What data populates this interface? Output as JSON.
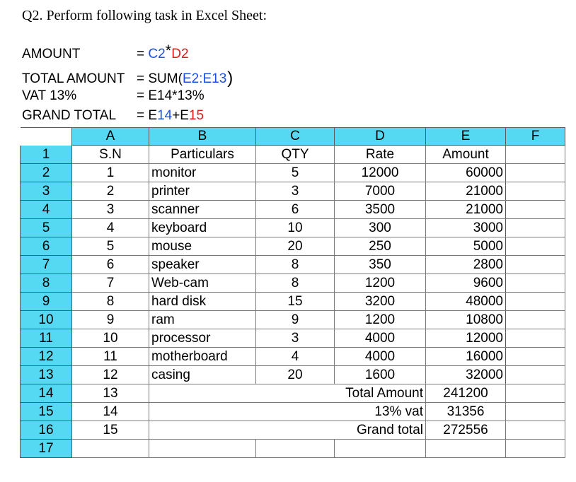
{
  "title": "Q2. Perform following task in Excel Sheet:",
  "formulas": [
    {
      "label": "AMOUNT",
      "parts": [
        {
          "text": "= ",
          "color": "black"
        },
        {
          "text": "C2",
          "color": "blue"
        },
        {
          "text": "*",
          "color": "black",
          "style": "star"
        },
        {
          "text": "D2",
          "color": "red"
        }
      ]
    },
    {
      "label": "TOTAL AMOUNT",
      "parts": [
        {
          "text": "= SUM(",
          "color": "black"
        },
        {
          "text": "E2:E13",
          "color": "blue"
        },
        {
          "text": ")",
          "color": "black",
          "style": "paren"
        }
      ]
    },
    {
      "label": "VAT 13%",
      "parts": [
        {
          "text": "= E14*13%",
          "color": "black"
        }
      ]
    },
    {
      "label": "GRAND TOTAL",
      "parts": [
        {
          "text": "= E",
          "color": "black"
        },
        {
          "text": "14",
          "color": "blue"
        },
        {
          "text": "+E",
          "color": "black"
        },
        {
          "text": "15",
          "color": "red"
        }
      ]
    }
  ],
  "sheet": {
    "columns": [
      "A",
      "B",
      "C",
      "D",
      "E",
      "F"
    ],
    "row_numbers": [
      "1",
      "2",
      "3",
      "4",
      "5",
      "6",
      "7",
      "8",
      "9",
      "10",
      "11",
      "12",
      "13",
      "14",
      "15",
      "16",
      "17"
    ],
    "header": [
      "S.N",
      "Particulars",
      "QTY",
      "Rate",
      "Amount",
      ""
    ],
    "items": [
      [
        "1",
        "monitor",
        "5",
        "12000",
        "60000"
      ],
      [
        "2",
        "printer",
        "3",
        "7000",
        "21000"
      ],
      [
        "3",
        "scanner",
        "6",
        "3500",
        "21000"
      ],
      [
        "4",
        "keyboard",
        "10",
        "300",
        "3000"
      ],
      [
        "5",
        "mouse",
        "20",
        "250",
        "5000"
      ],
      [
        "6",
        "speaker",
        "8",
        "350",
        "2800"
      ],
      [
        "7",
        "Web-cam",
        "8",
        "1200",
        "9600"
      ],
      [
        "8",
        "hard disk",
        "15",
        "3200",
        "48000"
      ],
      [
        "9",
        "ram",
        "9",
        "1200",
        "10800"
      ],
      [
        "10",
        "processor",
        "3",
        "4000",
        "12000"
      ],
      [
        "11",
        "motherboard",
        "4",
        "4000",
        "16000"
      ],
      [
        "12",
        "casing",
        "20",
        "1600",
        "32000"
      ]
    ],
    "totals": [
      [
        "13",
        "Total Amount",
        "241200"
      ],
      [
        "14",
        "13% vat",
        "31356"
      ],
      [
        "15",
        "Grand total",
        "272556"
      ]
    ]
  }
}
